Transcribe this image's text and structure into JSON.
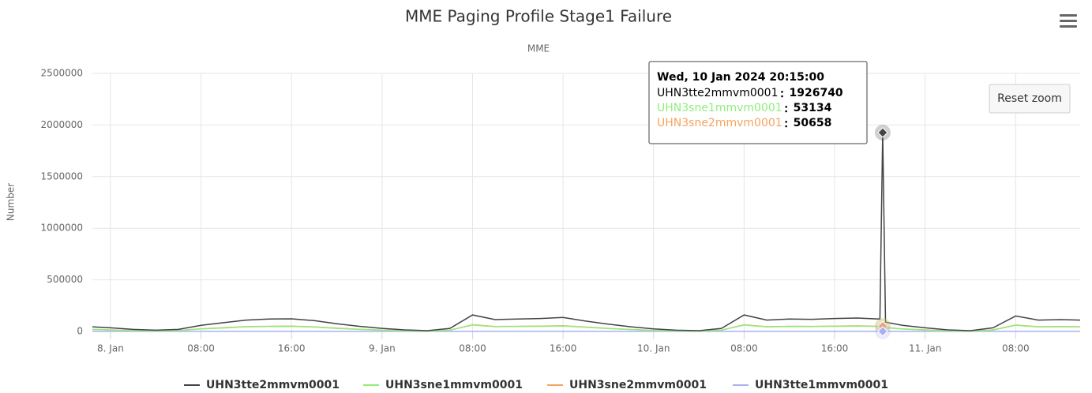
{
  "chart_data": {
    "type": "line",
    "title": "MME Paging Profile Stage1 Failure",
    "subtitle": "MME",
    "y_label": "Number",
    "button": "Reset zoom",
    "tooltip": {
      "header": "Wed, 10 Jan 2024 20:15:00"
    },
    "x": [
      "2024-01-07 22:24",
      "2024-01-08 00:00",
      "2024-01-08 02:00",
      "2024-01-08 04:00",
      "2024-01-08 06:00",
      "2024-01-08 08:00",
      "2024-01-08 10:00",
      "2024-01-08 12:00",
      "2024-01-08 14:00",
      "2024-01-08 16:00",
      "2024-01-08 18:00",
      "2024-01-08 20:00",
      "2024-01-08 22:00",
      "2024-01-09 00:00",
      "2024-01-09 02:00",
      "2024-01-09 04:00",
      "2024-01-09 06:00",
      "2024-01-09 08:00",
      "2024-01-09 10:00",
      "2024-01-09 12:00",
      "2024-01-09 14:00",
      "2024-01-09 16:00",
      "2024-01-09 18:00",
      "2024-01-09 20:00",
      "2024-01-09 22:00",
      "2024-01-10 00:00",
      "2024-01-10 02:00",
      "2024-01-10 04:00",
      "2024-01-10 06:00",
      "2024-01-10 08:00",
      "2024-01-10 10:00",
      "2024-01-10 12:00",
      "2024-01-10 14:00",
      "2024-01-10 16:00",
      "2024-01-10 18:00",
      "2024-01-10 20:00",
      "2024-01-10 20:15",
      "2024-01-10 20:30",
      "2024-01-10 22:00",
      "2024-01-11 00:00",
      "2024-01-11 02:00",
      "2024-01-11 04:00",
      "2024-01-11 06:00",
      "2024-01-11 08:00",
      "2024-01-11 10:00",
      "2024-01-11 12:00",
      "2024-01-11 13:42"
    ],
    "series": [
      {
        "name": "UHN3tte2mmvm0001",
        "color": "#434348",
        "values": [
          45000,
          35000,
          20000,
          12000,
          20000,
          60000,
          85000,
          110000,
          120000,
          122000,
          105000,
          75000,
          50000,
          30000,
          15000,
          8000,
          30000,
          160000,
          115000,
          120000,
          125000,
          135000,
          100000,
          70000,
          45000,
          25000,
          12000,
          8000,
          30000,
          160000,
          110000,
          120000,
          118000,
          125000,
          130000,
          120000,
          1926740,
          90000,
          60000,
          35000,
          15000,
          8000,
          35000,
          150000,
          110000,
          115000,
          110000
        ]
      },
      {
        "name": "UHN3sne1mmvm0001",
        "color": "#90ed7d",
        "values": [
          19000,
          14000,
          8500,
          5000,
          8500,
          25000,
          34000,
          45000,
          48000,
          49000,
          42000,
          30000,
          20000,
          12000,
          6500,
          4000,
          12000,
          62000,
          46000,
          48000,
          50000,
          53000,
          40000,
          28000,
          18000,
          10000,
          5000,
          4000,
          12000,
          62000,
          44000,
          48000,
          47000,
          50000,
          52000,
          48000,
          53134,
          36000,
          24000,
          14000,
          6500,
          4000,
          14000,
          60000,
          44000,
          46000,
          44000
        ]
      },
      {
        "name": "UHN3sne2mmvm0001",
        "color": "#f7a35c",
        "values": [
          20000,
          15000,
          9000,
          5000,
          9000,
          26000,
          36000,
          47000,
          50000,
          51000,
          44000,
          32000,
          21000,
          13000,
          7000,
          4000,
          13000,
          65000,
          48000,
          50000,
          52000,
          56000,
          42000,
          30000,
          19000,
          11000,
          5000,
          4000,
          13000,
          65000,
          46000,
          50000,
          49000,
          52000,
          54000,
          50000,
          50658,
          38000,
          25000,
          15000,
          7000,
          4000,
          15000,
          62000,
          46000,
          48000,
          46000
        ]
      },
      {
        "name": "UHN3tte1mmvm0001",
        "color": "#a9b0f2",
        "values": [
          1000,
          1000,
          1000,
          1000,
          1000,
          1000,
          1000,
          1000,
          1000,
          1000,
          1000,
          1000,
          1000,
          1000,
          1000,
          1000,
          1000,
          1000,
          1000,
          1000,
          1000,
          1000,
          1000,
          1000,
          1000,
          1000,
          1000,
          1000,
          1000,
          1000,
          1000,
          1000,
          1000,
          1000,
          1000,
          1000,
          1000,
          1000,
          1000,
          1000,
          1000,
          1000,
          1000,
          1000,
          1000,
          1000,
          1000
        ]
      }
    ],
    "xlim": [
      "2024-01-07 22:24",
      "2024-01-11 13:42"
    ],
    "xticks": [
      {
        "value": "2024-01-08 00:00",
        "label": "8. Jan"
      },
      {
        "value": "2024-01-08 08:00",
        "label": "08:00"
      },
      {
        "value": "2024-01-08 16:00",
        "label": "16:00"
      },
      {
        "value": "2024-01-09 00:00",
        "label": "9. Jan"
      },
      {
        "value": "2024-01-09 08:00",
        "label": "08:00"
      },
      {
        "value": "2024-01-09 16:00",
        "label": "16:00"
      },
      {
        "value": "2024-01-10 00:00",
        "label": "10. Jan"
      },
      {
        "value": "2024-01-10 08:00",
        "label": "08:00"
      },
      {
        "value": "2024-01-10 16:00",
        "label": "16:00"
      },
      {
        "value": "2024-01-11 00:00",
        "label": "11. Jan"
      },
      {
        "value": "2024-01-11 08:00",
        "label": "08:00"
      }
    ],
    "ylim": [
      0,
      2500000
    ],
    "yticks": [
      0,
      500000,
      1000000,
      1500000,
      2000000,
      2500000
    ],
    "grid": true
  }
}
